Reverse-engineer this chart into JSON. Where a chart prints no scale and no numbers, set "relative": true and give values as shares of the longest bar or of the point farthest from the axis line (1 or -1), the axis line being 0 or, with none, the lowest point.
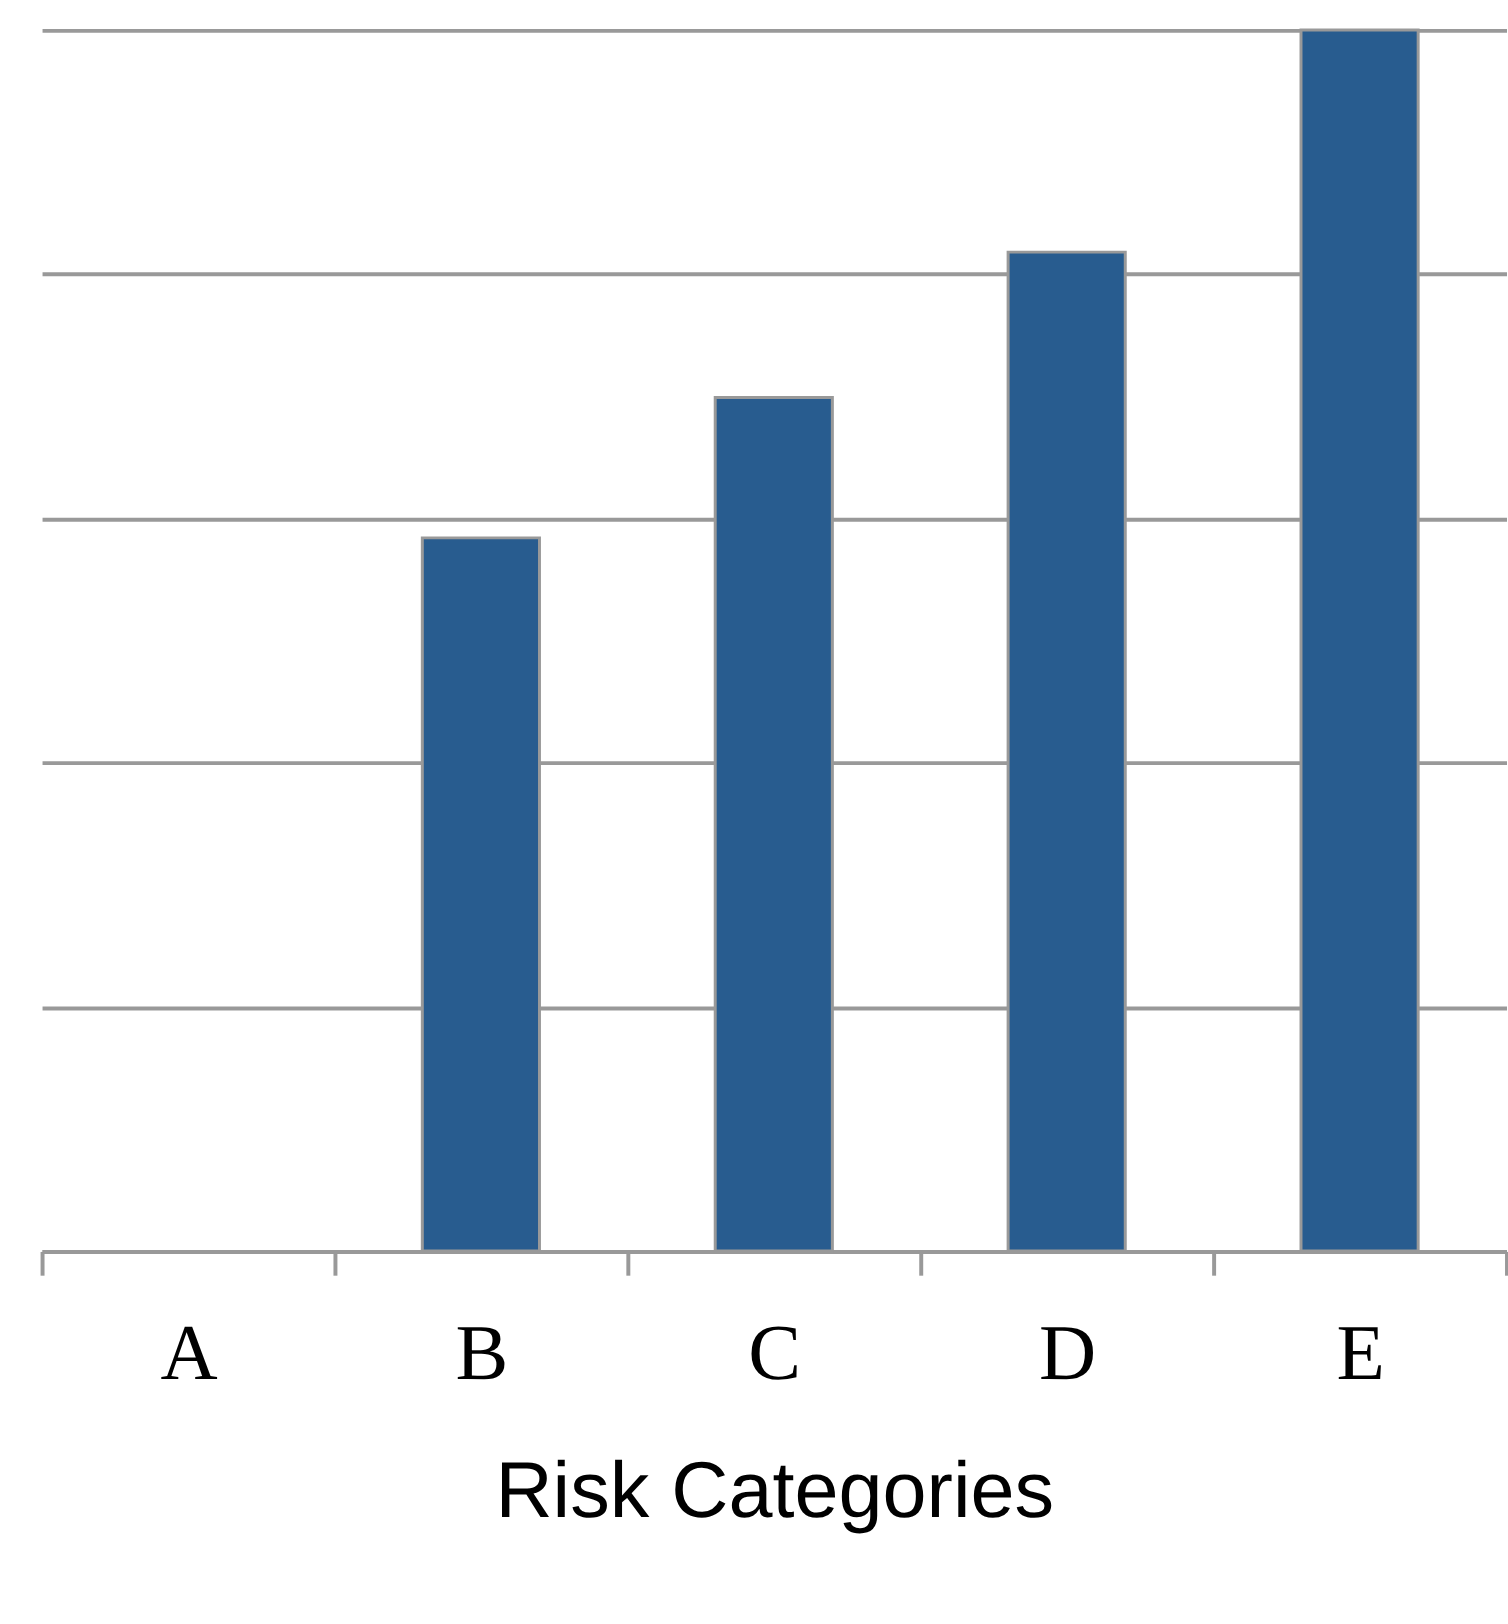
{
  "chart_data": {
    "type": "bar",
    "xlabel": "Risk Categories",
    "categories": [
      "A",
      "B",
      "C",
      "D",
      "E"
    ],
    "values": [
      null,
      0.584,
      0.699,
      0.818,
      1
    ],
    "color": "#285c8f",
    "relative": true,
    "grid": "y"
  }
}
